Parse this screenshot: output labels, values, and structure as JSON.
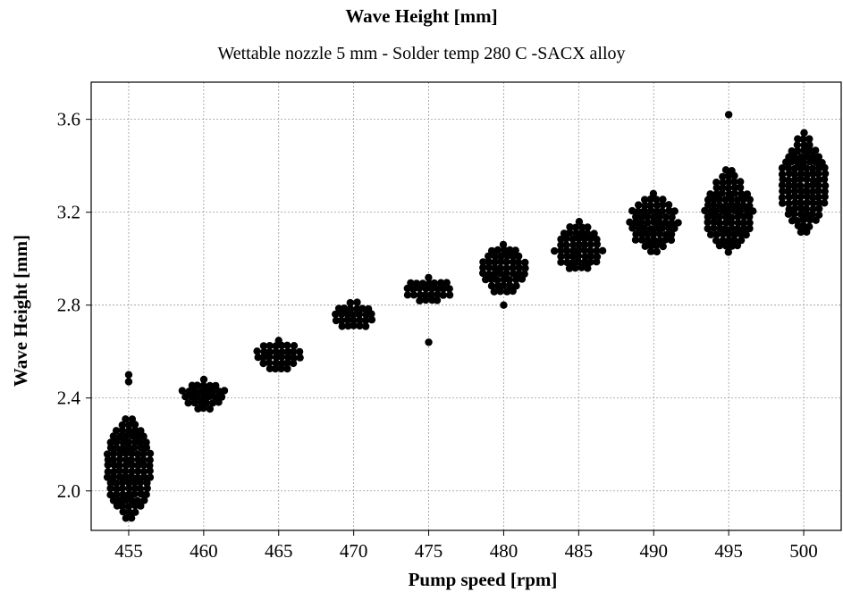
{
  "chart_data": {
    "type": "scatter",
    "subtype": "beeswarm",
    "title": "Wave Height [mm]",
    "subtitle": "Wettable nozzle 5 mm - Solder temp 280 C -SACX alloy",
    "xlabel": "Pump speed [rpm]",
    "ylabel": "Wave Height [mm]",
    "categories": [
      "455",
      "460",
      "465",
      "470",
      "475",
      "480",
      "485",
      "490",
      "495",
      "500"
    ],
    "yticks": [
      "2.0",
      "2.4",
      "2.8",
      "3.2",
      "3.6"
    ],
    "ylim": [
      1.83,
      3.76
    ],
    "grid": true,
    "marker_color": "#000000",
    "groups": [
      {
        "x": "455",
        "center": 2.12,
        "min": 1.86,
        "max": 2.31,
        "outliers": [
          2.47,
          2.5
        ]
      },
      {
        "x": "460",
        "center": 2.42,
        "min": 2.35,
        "max": 2.48,
        "outliers": []
      },
      {
        "x": "465",
        "center": 2.59,
        "min": 2.51,
        "max": 2.65,
        "outliers": []
      },
      {
        "x": "470",
        "center": 2.75,
        "min": 2.69,
        "max": 2.81,
        "outliers": []
      },
      {
        "x": "475",
        "center": 2.86,
        "min": 2.81,
        "max": 2.92,
        "outliers": [
          2.64
        ]
      },
      {
        "x": "480",
        "center": 2.97,
        "min": 2.84,
        "max": 3.06,
        "outliers": [
          2.8
        ]
      },
      {
        "x": "485",
        "center": 3.04,
        "min": 2.94,
        "max": 3.16,
        "outliers": []
      },
      {
        "x": "490",
        "center": 3.16,
        "min": 3.02,
        "max": 3.28,
        "outliers": []
      },
      {
        "x": "495",
        "center": 3.19,
        "min": 3.02,
        "max": 3.38,
        "outliers": [
          3.62
        ]
      },
      {
        "x": "500",
        "center": 3.31,
        "min": 3.1,
        "max": 3.54,
        "outliers": []
      }
    ]
  }
}
